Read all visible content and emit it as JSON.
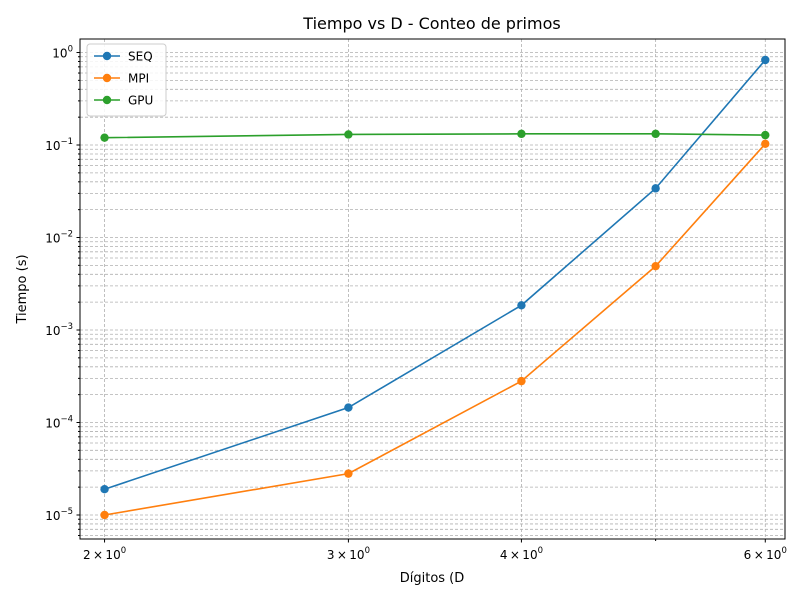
{
  "chart_data": {
    "type": "line",
    "title": "Tiempo vs D - Conteo de primos",
    "xlabel": "Dígitos (D",
    "ylabel": "Tiempo (s)",
    "xscale": "log",
    "yscale": "log",
    "grid": true,
    "grid_which": "both",
    "legend_position": "top-left",
    "xlim": [
      1.92,
      6.2
    ],
    "ylim": [
      5.5e-06,
      1.4
    ],
    "x_ticks": [
      {
        "value": 2,
        "label_base": "2",
        "label_sup": "0"
      },
      {
        "value": 3,
        "label_base": "3",
        "label_sup": "0"
      },
      {
        "value": 4,
        "label_base": "4",
        "label_sup": "0"
      },
      {
        "value": 6,
        "label_base": "6",
        "label_sup": "0"
      }
    ],
    "x_minor_ticks": [
      5
    ],
    "y_ticks": [
      {
        "value": 1e-05,
        "label_base": "10",
        "label_sup": "−5"
      },
      {
        "value": 0.0001,
        "label_base": "10",
        "label_sup": "−4"
      },
      {
        "value": 0.001,
        "label_base": "10",
        "label_sup": "−3"
      },
      {
        "value": 0.01,
        "label_base": "10",
        "label_sup": "−2"
      },
      {
        "value": 0.1,
        "label_base": "10",
        "label_sup": "−1"
      },
      {
        "value": 1,
        "label_base": "10",
        "label_sup": "0"
      }
    ],
    "x": [
      2,
      3,
      4,
      5,
      6
    ],
    "series": [
      {
        "name": "SEQ",
        "color": "#1f77b4",
        "values": [
          1.9e-05,
          0.000145,
          0.00185,
          0.034,
          0.83
        ]
      },
      {
        "name": "MPI",
        "color": "#ff7f0e",
        "values": [
          1e-05,
          2.8e-05,
          0.00028,
          0.0049,
          0.103
        ]
      },
      {
        "name": "GPU",
        "color": "#2ca02c",
        "values": [
          0.12,
          0.13,
          0.132,
          0.132,
          0.128
        ]
      }
    ]
  }
}
